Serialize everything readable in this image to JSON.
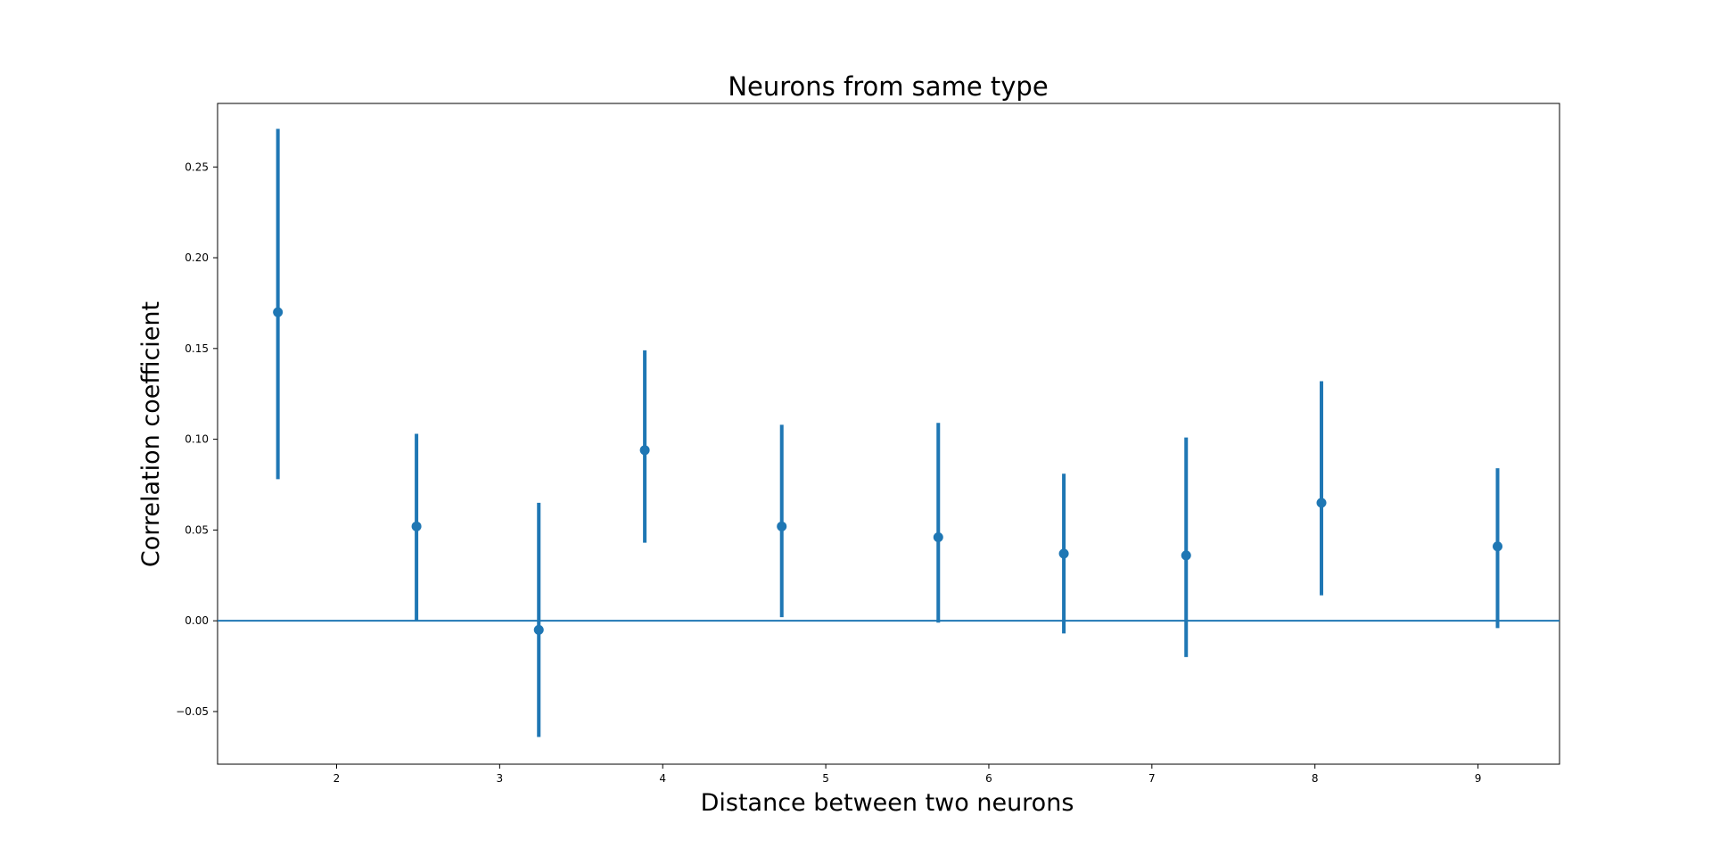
{
  "chart_data": {
    "type": "errorbar",
    "title": "Neurons from same type",
    "xlabel": "Distance between two neurons",
    "ylabel": "Correlation coefficient",
    "xlim": [
      1.27,
      9.5
    ],
    "ylim": [
      -0.079,
      0.285
    ],
    "xticks": [
      2,
      3,
      4,
      5,
      6,
      7,
      8,
      9
    ],
    "yticks": [
      -0.05,
      0.0,
      0.05,
      0.1,
      0.15,
      0.2,
      0.25
    ],
    "ytick_labels": [
      "−0.05",
      "0.00",
      "0.05",
      "0.10",
      "0.15",
      "0.20",
      "0.25"
    ],
    "hline": 0.0,
    "color": "#1f77b4",
    "points": [
      {
        "x": 1.64,
        "y": 0.17,
        "low": 0.078,
        "high": 0.271
      },
      {
        "x": 2.49,
        "y": 0.052,
        "low": 0.0,
        "high": 0.103
      },
      {
        "x": 3.24,
        "y": -0.005,
        "low": -0.064,
        "high": 0.065
      },
      {
        "x": 3.89,
        "y": 0.094,
        "low": 0.043,
        "high": 0.149
      },
      {
        "x": 4.73,
        "y": 0.052,
        "low": 0.002,
        "high": 0.108
      },
      {
        "x": 5.69,
        "y": 0.046,
        "low": -0.001,
        "high": 0.109
      },
      {
        "x": 6.46,
        "y": 0.037,
        "low": -0.007,
        "high": 0.081
      },
      {
        "x": 7.21,
        "y": 0.036,
        "low": -0.02,
        "high": 0.101
      },
      {
        "x": 8.04,
        "y": 0.065,
        "low": 0.014,
        "high": 0.132
      },
      {
        "x": 9.12,
        "y": 0.041,
        "low": -0.004,
        "high": 0.084
      }
    ]
  }
}
